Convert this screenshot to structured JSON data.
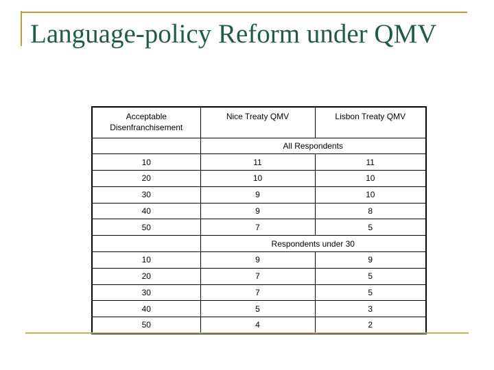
{
  "slide": {
    "title": "Language-policy Reform under QMV",
    "colors": {
      "title_green": "#1f5c48",
      "accent_gold": "#b8a33c",
      "table_border": "#000000",
      "background": "#ffffff"
    }
  },
  "table": {
    "columns": [
      "Acceptable Disenfranchisement",
      "Nice Treaty QMV",
      "Lisbon Treaty QMV"
    ],
    "sections": [
      {
        "label": "All Respondents",
        "rows": [
          [
            "10",
            "11",
            "11"
          ],
          [
            "20",
            "10",
            "10"
          ],
          [
            "30",
            "9",
            "10"
          ],
          [
            "40",
            "9",
            "8"
          ],
          [
            "50",
            "7",
            "5"
          ]
        ]
      },
      {
        "label": "Respondents under 30",
        "rows": [
          [
            "10",
            "9",
            "9"
          ],
          [
            "20",
            "7",
            "5"
          ],
          [
            "30",
            "7",
            "5"
          ],
          [
            "40",
            "5",
            "3"
          ],
          [
            "50",
            "4",
            "2"
          ]
        ]
      }
    ]
  }
}
